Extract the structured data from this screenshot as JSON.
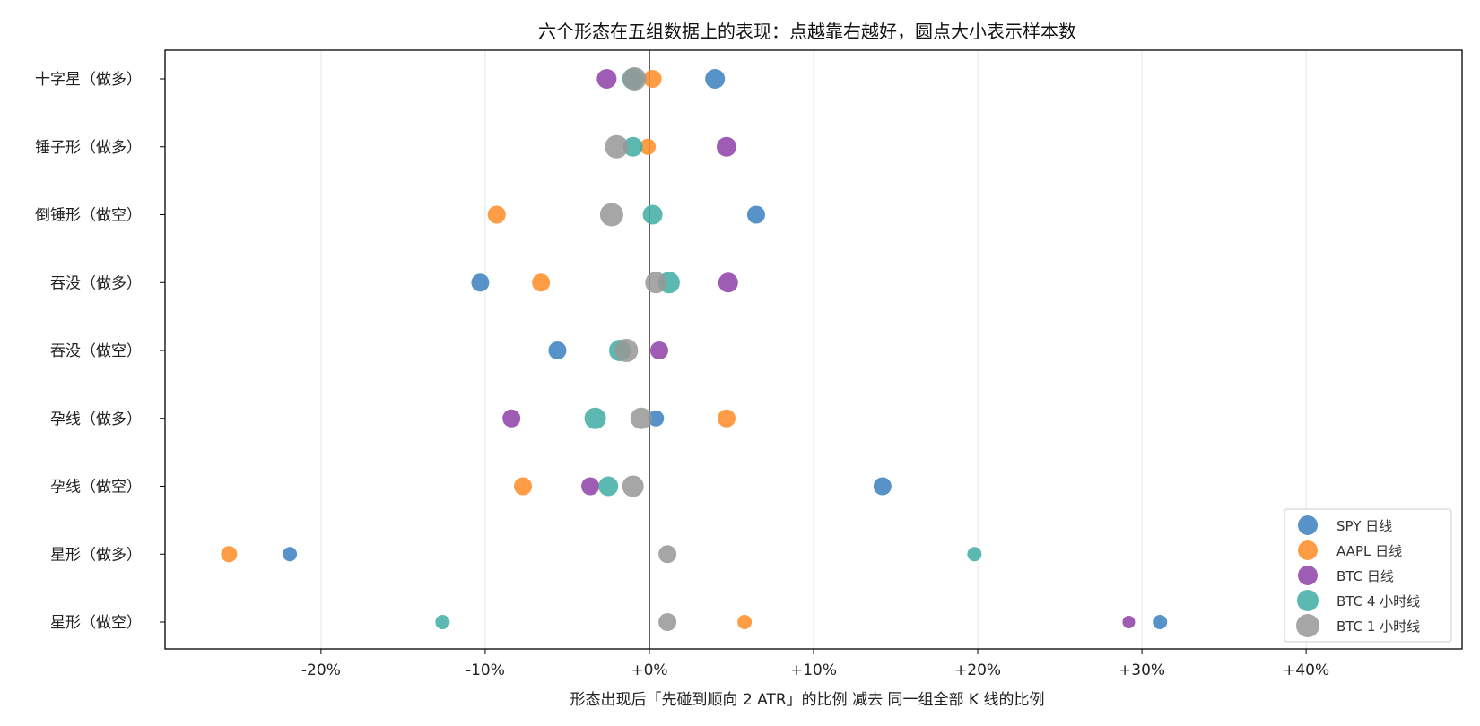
{
  "chart_data": {
    "type": "scatter",
    "title": "六个形态在五组数据上的表现：点越靠右越好，圆点大小表示样本数",
    "xlabel": "形态出现后「先碰到顺向 2 ATR」的比例 减去 同一组全部 K 线的比例",
    "ylabel": "",
    "xlim": [
      -29.5,
      49.5
    ],
    "x_ticks": [
      -20,
      -10,
      0,
      10,
      20,
      30,
      40
    ],
    "x_tick_labels": [
      "-20%",
      "-10%",
      "+0%",
      "+10%",
      "+20%",
      "+30%",
      "+40%"
    ],
    "categories": [
      "十字星（做多）",
      "锤子形（做多）",
      "倒锤形（做空）",
      "吞没（做多）",
      "吞没（做空）",
      "孕线（做多）",
      "孕线（做空）",
      "星形（做多）",
      "星形（做空）"
    ],
    "grid": "vertical",
    "legend_position": "bottom-right",
    "zero_line": true,
    "series": [
      {
        "name": "SPY 日线",
        "color": "#3a7fbf",
        "legend_size": 11,
        "values": [
          4.0,
          null,
          6.5,
          -10.3,
          -5.6,
          0.4,
          14.2,
          -21.9,
          31.1
        ],
        "sizes": [
          11,
          null,
          10,
          10,
          10,
          9,
          10,
          8,
          8
        ]
      },
      {
        "name": "AAPL 日线",
        "color": "#ff8c26",
        "legend_size": 11,
        "values": [
          0.2,
          -0.1,
          -9.3,
          -6.6,
          null,
          4.7,
          -7.7,
          -25.6,
          5.8
        ],
        "sizes": [
          10,
          9,
          10,
          10,
          null,
          10,
          10,
          9,
          8
        ]
      },
      {
        "name": "BTC 日线",
        "color": "#8e3fa8",
        "legend_size": 11,
        "values": [
          -2.6,
          4.7,
          null,
          4.8,
          0.6,
          -8.4,
          -3.6,
          null,
          29.2
        ],
        "sizes": [
          11,
          11,
          null,
          11,
          10,
          10,
          10,
          null,
          7
        ]
      },
      {
        "name": "BTC 4 小时线",
        "color": "#40ada3",
        "legend_size": 12,
        "values": [
          -1.0,
          -1.0,
          0.2,
          1.2,
          -1.8,
          -3.3,
          -2.5,
          19.8,
          -12.6
        ],
        "sizes": [
          12,
          11,
          11,
          12,
          12,
          12,
          11,
          8,
          8
        ]
      },
      {
        "name": "BTC 1 小时线",
        "color": "#969696",
        "legend_size": 13,
        "values": [
          -0.9,
          -2.0,
          -2.3,
          0.4,
          -1.4,
          -0.5,
          -1.0,
          1.1,
          1.1
        ],
        "sizes": [
          13,
          13,
          13,
          12,
          13,
          12,
          12,
          10,
          10
        ]
      }
    ]
  }
}
